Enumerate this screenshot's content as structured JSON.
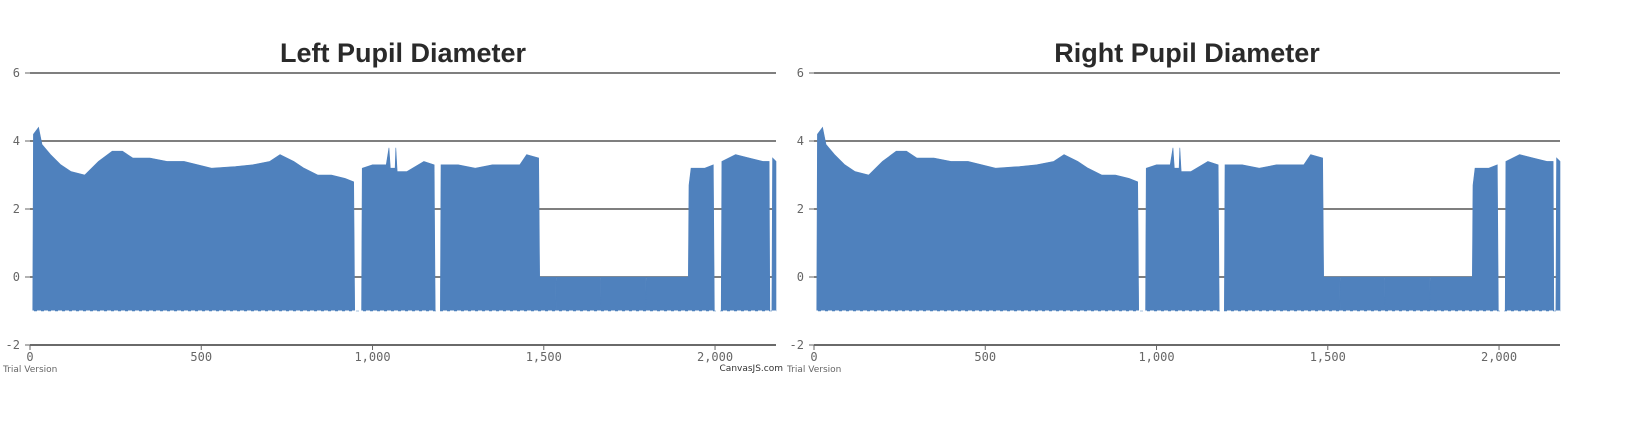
{
  "chart_data": [
    {
      "type": "area",
      "title": "Left Pupil Diameter",
      "color": "#4f81bd",
      "x": [
        0,
        8,
        10,
        25,
        35,
        60,
        90,
        120,
        160,
        200,
        240,
        270,
        300,
        350,
        400,
        450,
        490,
        530,
        600,
        650,
        700,
        730,
        770,
        800,
        840,
        880,
        920,
        945,
        948,
        968,
        970,
        1000,
        1040,
        1048,
        1052,
        1066,
        1068,
        1072,
        1100,
        1150,
        1180,
        1183,
        1198,
        1200,
        1250,
        1300,
        1350,
        1400,
        1430,
        1450,
        1485,
        1488,
        1535,
        1536,
        1537,
        1665,
        1666,
        1667,
        1798,
        1799,
        1800,
        1922,
        1924,
        1930,
        1970,
        1995,
        1998,
        2018,
        2020,
        2060,
        2100,
        2140,
        2158,
        2160,
        2166,
        2168,
        2178
      ],
      "values": [
        -1,
        -1,
        4.2,
        4.4,
        3.9,
        3.6,
        3.3,
        3.1,
        3.0,
        3.4,
        3.7,
        3.7,
        3.5,
        3.5,
        3.4,
        3.4,
        3.3,
        3.2,
        3.25,
        3.3,
        3.4,
        3.6,
        3.4,
        3.2,
        3.0,
        3.0,
        2.9,
        2.8,
        -1,
        -1,
        3.2,
        3.3,
        3.3,
        3.8,
        3.2,
        3.2,
        3.8,
        3.1,
        3.1,
        3.4,
        3.3,
        -1,
        -1,
        3.3,
        3.3,
        3.2,
        3.3,
        3.3,
        3.3,
        3.6,
        3.5,
        0,
        0,
        -1,
        0,
        0,
        -1,
        0,
        0,
        -1,
        0,
        0,
        2.7,
        3.2,
        3.2,
        3.3,
        -1,
        -1,
        3.4,
        3.6,
        3.5,
        3.4,
        3.4,
        -1,
        -1,
        3.5,
        3.4
      ],
      "xlim": [
        0,
        2178
      ],
      "xticks": [
        0,
        500,
        {
          "value": 1000,
          "label": "1,000"
        },
        {
          "value": 1500,
          "label": "1,500"
        },
        {
          "value": 2000,
          "label": "2,000"
        }
      ],
      "ylim": [
        -2,
        6
      ],
      "yticks": [
        -2,
        0,
        2,
        4,
        6
      ],
      "grid": true,
      "watermark": "Trial Version",
      "credit": "CanvasJS.com"
    },
    {
      "type": "area",
      "title": "Right Pupil Diameter",
      "color": "#4f81bd",
      "x": [
        0,
        8,
        10,
        25,
        35,
        60,
        90,
        120,
        160,
        200,
        240,
        270,
        300,
        350,
        400,
        450,
        490,
        530,
        600,
        650,
        700,
        730,
        770,
        800,
        840,
        880,
        920,
        945,
        948,
        968,
        970,
        1000,
        1040,
        1048,
        1052,
        1066,
        1068,
        1072,
        1100,
        1150,
        1180,
        1183,
        1198,
        1200,
        1250,
        1300,
        1350,
        1400,
        1430,
        1450,
        1485,
        1488,
        1535,
        1536,
        1537,
        1665,
        1666,
        1667,
        1798,
        1799,
        1800,
        1922,
        1924,
        1930,
        1970,
        1995,
        1998,
        2018,
        2020,
        2060,
        2100,
        2140,
        2158,
        2160,
        2166,
        2168,
        2178
      ],
      "values": [
        -1,
        -1,
        4.2,
        4.4,
        3.9,
        3.6,
        3.3,
        3.1,
        3.0,
        3.4,
        3.7,
        3.7,
        3.5,
        3.5,
        3.4,
        3.4,
        3.3,
        3.2,
        3.25,
        3.3,
        3.4,
        3.6,
        3.4,
        3.2,
        3.0,
        3.0,
        2.9,
        2.8,
        -1,
        -1,
        3.2,
        3.3,
        3.3,
        3.8,
        3.2,
        3.2,
        3.8,
        3.1,
        3.1,
        3.4,
        3.3,
        -1,
        -1,
        3.3,
        3.3,
        3.2,
        3.3,
        3.3,
        3.3,
        3.6,
        3.5,
        0,
        0,
        -1,
        0,
        0,
        -1,
        0,
        0,
        -1,
        0,
        0,
        2.7,
        3.2,
        3.2,
        3.3,
        -1,
        -1,
        3.4,
        3.6,
        3.5,
        3.4,
        3.4,
        -1,
        -1,
        3.5,
        3.4
      ],
      "xlim": [
        0,
        2178
      ],
      "xticks": [
        0,
        500,
        {
          "value": 1000,
          "label": "1,000"
        },
        {
          "value": 1500,
          "label": "1,500"
        },
        {
          "value": 2000,
          "label": "2,000"
        }
      ],
      "ylim": [
        -2,
        6
      ],
      "yticks": [
        -2,
        0,
        2,
        4,
        6
      ],
      "grid": true,
      "watermark": "Trial Version"
    }
  ]
}
